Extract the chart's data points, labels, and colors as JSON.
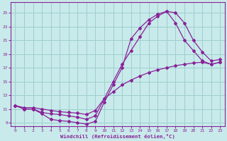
{
  "background_color": "#c8eaea",
  "grid_color": "#9ecece",
  "line_color": "#882299",
  "xlabel": "Windchill (Refroidissement éolien,°C)",
  "xlim": [
    -0.5,
    23.5
  ],
  "ylim": [
    8.5,
    26.5
  ],
  "yticks": [
    9,
    11,
    13,
    15,
    17,
    19,
    21,
    23,
    25
  ],
  "xticks": [
    0,
    1,
    2,
    3,
    4,
    5,
    6,
    7,
    8,
    9,
    10,
    11,
    12,
    13,
    14,
    15,
    16,
    17,
    18,
    19,
    20,
    21,
    22,
    23
  ],
  "line1_x": [
    0,
    1,
    2,
    3,
    4,
    5,
    6,
    7,
    8,
    9,
    10,
    11,
    12,
    13,
    14,
    15,
    16,
    17,
    18,
    19,
    20,
    21,
    22,
    23
  ],
  "line1_y": [
    11.5,
    11.0,
    11.0,
    10.3,
    9.5,
    9.3,
    9.2,
    9.0,
    8.8,
    9.2,
    12.0,
    14.5,
    17.0,
    21.2,
    22.8,
    24.0,
    24.8,
    25.2,
    23.5,
    21.0,
    19.5,
    18.0,
    17.5,
    17.8
  ],
  "line2_x": [
    0,
    1,
    2,
    3,
    4,
    5,
    6,
    7,
    8,
    9,
    10,
    11,
    12,
    13,
    14,
    15,
    16,
    17,
    18,
    19,
    20,
    21,
    22,
    23
  ],
  "line2_y": [
    11.5,
    11.0,
    11.0,
    10.5,
    10.3,
    10.2,
    10.0,
    9.8,
    9.5,
    10.0,
    12.5,
    15.0,
    17.5,
    19.5,
    21.5,
    23.5,
    24.5,
    25.2,
    25.0,
    23.5,
    21.0,
    19.3,
    18.0,
    18.2
  ],
  "line3_x": [
    0,
    1,
    2,
    3,
    4,
    5,
    6,
    7,
    8,
    9,
    10,
    11,
    12,
    13,
    14,
    15,
    16,
    17,
    18,
    19,
    20,
    21,
    22,
    23
  ],
  "line3_y": [
    11.5,
    11.2,
    11.2,
    11.0,
    10.8,
    10.6,
    10.5,
    10.4,
    10.2,
    10.8,
    12.5,
    13.5,
    14.5,
    15.2,
    15.8,
    16.3,
    16.7,
    17.0,
    17.3,
    17.5,
    17.7,
    17.8,
    17.5,
    17.8
  ]
}
